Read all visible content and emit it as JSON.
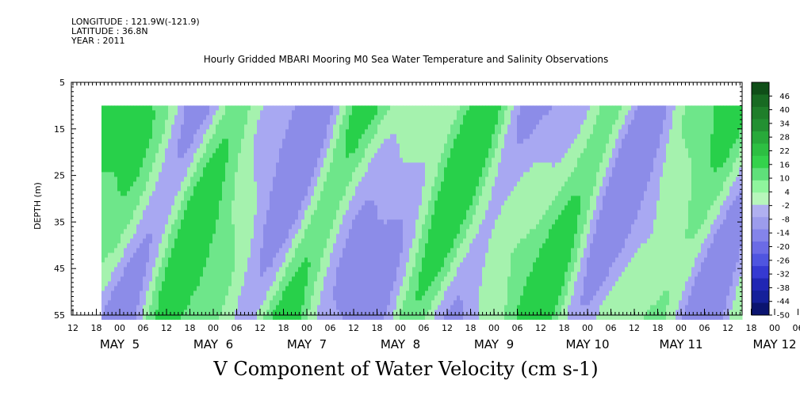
{
  "header": {
    "longitude": "LONGITUDE : 121.9W(-121.9)",
    "latitude": "LATITUDE : 36.8N",
    "year": "YEAR : 2011"
  },
  "chart_data": {
    "type": "heatmap",
    "title": "Hourly Gridded MBARI Mooring M0 Sea Water Temperature and Salinity Observations",
    "xlabel": "V Component of Water Velocity (cm s-1)",
    "ylabel": "DEPTH (m)",
    "ylim": [
      5,
      55
    ],
    "y_ticks": [
      5,
      15,
      25,
      35,
      45,
      55
    ],
    "data_depth_range": [
      10,
      55
    ],
    "x_hour_ticks": [
      "12",
      "18",
      "00",
      "06",
      "12",
      "18",
      "00",
      "06",
      "12",
      "18",
      "00",
      "06",
      "12",
      "18",
      "00",
      "06",
      "12",
      "18",
      "00",
      "06",
      "12",
      "18",
      "00",
      "06",
      "12",
      "18",
      "00",
      "06",
      "12",
      "18",
      "00",
      "06",
      "12"
    ],
    "x_day_labels": [
      "MAY  5",
      "MAY  6",
      "MAY  7",
      "MAY  8",
      "MAY  9",
      "MAY 10",
      "MAY 11",
      "MAY 12"
    ],
    "colorbar_ticks": [
      46,
      40,
      34,
      28,
      22,
      16,
      10,
      4,
      -2,
      -8,
      -14,
      -20,
      -26,
      -32,
      -38,
      -44,
      -50
    ],
    "colorbar_colors": [
      "#0f4e17",
      "#186a22",
      "#1f7e2a",
      "#239032",
      "#28a93a",
      "#2dbf42",
      "#34d24c",
      "#5fe07a",
      "#8ff59d",
      "#b7f6bb",
      "#b0b0f0",
      "#9c9cec",
      "#8484ea",
      "#6b6be6",
      "#4f55e0",
      "#3539d2",
      "#2026b4",
      "#15209a",
      "#0b1470"
    ],
    "colors": {
      "negative_light": "#a8a8f2",
      "positive_light": "#a5f2ae",
      "positive_mid": "#6ee68a",
      "positive_strong": "#28d04a"
    }
  }
}
